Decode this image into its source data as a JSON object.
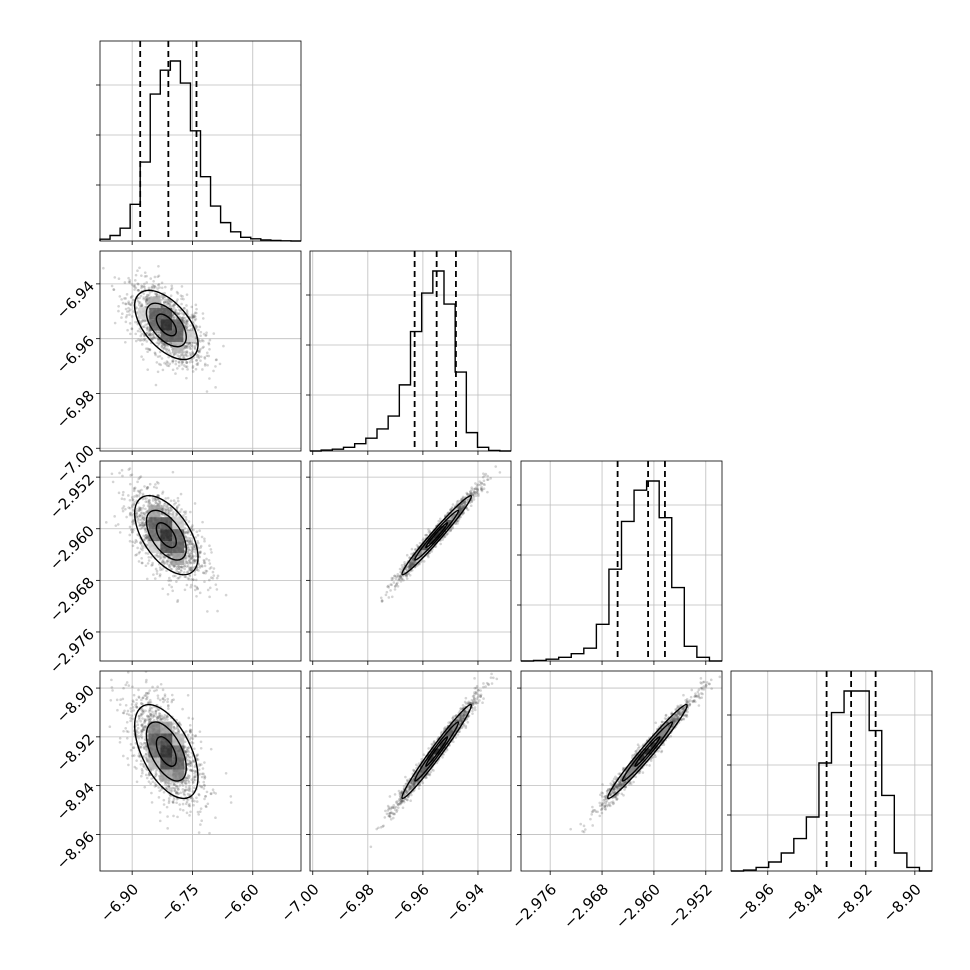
{
  "chart_data": {
    "type": "corner",
    "title": "",
    "parameters": [
      "",
      "",
      "",
      ""
    ],
    "grid": true,
    "colors": {
      "line": "#000000",
      "grid": "#bdbdbd",
      "points": "#555555"
    },
    "quantiles_shown": [
      0.16,
      0.5,
      0.84
    ],
    "axes": [
      {
        "range": [
          -6.98,
          -6.48
        ],
        "ticks": [
          -6.9,
          -6.75,
          -6.6
        ],
        "tick_labels": [
          "−6.90",
          "−6.75",
          "−6.60"
        ],
        "quantiles": [
          -6.88,
          -6.81,
          -6.74
        ]
      },
      {
        "range": [
          -7.001,
          -6.928
        ],
        "ticks": [
          -7.0,
          -6.98,
          -6.96,
          -6.94
        ],
        "tick_labels": [
          "−7.00",
          "−6.98",
          "−6.96",
          "−6.94"
        ],
        "quantiles": [
          -6.963,
          -6.955,
          -6.948
        ]
      },
      {
        "range": [
          -2.9805,
          -2.9495
        ],
        "ticks": [
          -2.976,
          -2.968,
          -2.96,
          -2.952
        ],
        "tick_labels": [
          "−2.976",
          "−2.968",
          "−2.960",
          "−2.952"
        ],
        "quantiles": [
          -2.9656,
          -2.9609,
          -2.9583
        ]
      },
      {
        "range": [
          -8.975,
          -8.893
        ],
        "ticks": [
          -8.96,
          -8.94,
          -8.92,
          -8.9
        ],
        "tick_labels": [
          "−8.96",
          "−8.94",
          "−8.92",
          "−8.90"
        ],
        "quantiles": [
          -8.936,
          -8.926,
          -8.916
        ]
      }
    ],
    "histograms": [
      {
        "bins": [
          -6.98,
          -6.48
        ],
        "counts": [
          1,
          3,
          7,
          20,
          43,
          80,
          93,
          98,
          86,
          60,
          35,
          19,
          10,
          5,
          2,
          1.2,
          0.6,
          0.3,
          0.1,
          0
        ]
      },
      {
        "bins": [
          -7.001,
          -6.928
        ],
        "counts": [
          0,
          0.5,
          1,
          2,
          4,
          7,
          12,
          19,
          36,
          65,
          86,
          98,
          80,
          43,
          10,
          2,
          0.3,
          0
        ]
      },
      {
        "bins": [
          -2.9805,
          -2.9495
        ],
        "counts": [
          0,
          0.3,
          1,
          2,
          4,
          7,
          20,
          50,
          76,
          93,
          98,
          78,
          40,
          8,
          2,
          0
        ]
      },
      {
        "bins": [
          -8.975,
          -8.893
        ],
        "counts": [
          0,
          0.5,
          2,
          5,
          10,
          18,
          30,
          60,
          88,
          100,
          100,
          78,
          42,
          10,
          2,
          0
        ]
      }
    ],
    "pairs": [
      {
        "row": 1,
        "col": 0,
        "center": [
          -6.815,
          -6.955
        ],
        "sd": [
          0.045,
          0.0072
        ],
        "rho": -0.55
      },
      {
        "row": 2,
        "col": 0,
        "center": [
          -6.815,
          -2.961
        ],
        "sd": [
          0.045,
          0.0035
        ],
        "rho": -0.55
      },
      {
        "row": 2,
        "col": 1,
        "center": [
          -6.955,
          -2.961
        ],
        "sd": [
          0.0072,
          0.0035
        ],
        "rho": 0.98
      },
      {
        "row": 3,
        "col": 0,
        "center": [
          -6.815,
          -8.926
        ],
        "sd": [
          0.045,
          0.011
        ],
        "rho": -0.55
      },
      {
        "row": 3,
        "col": 1,
        "center": [
          -6.955,
          -8.926
        ],
        "sd": [
          0.0072,
          0.011
        ],
        "rho": 0.98
      },
      {
        "row": 3,
        "col": 2,
        "center": [
          -2.961,
          -8.926
        ],
        "sd": [
          0.0035,
          0.011
        ],
        "rho": 0.98
      }
    ]
  }
}
